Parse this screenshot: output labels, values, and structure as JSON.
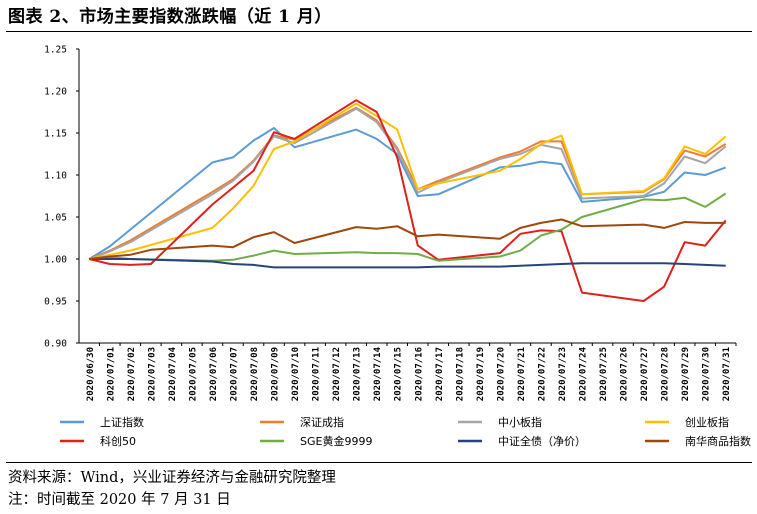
{
  "figure": {
    "title": "图表 2、市场主要指数涨跌幅（近 1 月）",
    "source": "资料来源：Wind，兴业证券经济与金融研究院整理",
    "note": "注：时间截至 2020 年 7 月 31 日"
  },
  "chart_data": {
    "type": "line",
    "title": "",
    "xlabel": "",
    "ylabel": "",
    "ylim": [
      0.9,
      1.25
    ],
    "yticks": [
      "0.90",
      "0.95",
      "1.00",
      "1.05",
      "1.10",
      "1.15",
      "1.20",
      "1.25"
    ],
    "grid": false,
    "legend_position": "bottom",
    "categories": [
      "2020/06/30",
      "2020/07/01",
      "2020/07/02",
      "2020/07/03",
      "2020/07/04",
      "2020/07/05",
      "2020/07/06",
      "2020/07/07",
      "2020/07/08",
      "2020/07/09",
      "2020/07/10",
      "2020/07/11",
      "2020/07/12",
      "2020/07/13",
      "2020/07/14",
      "2020/07/15",
      "2020/07/16",
      "2020/07/17",
      "2020/07/18",
      "2020/07/19",
      "2020/07/20",
      "2020/07/21",
      "2020/07/22",
      "2020/07/23",
      "2020/07/24",
      "2020/07/25",
      "2020/07/26",
      "2020/07/27",
      "2020/07/28",
      "2020/07/29",
      "2020/07/30",
      "2020/07/31"
    ],
    "series": [
      {
        "name": "上证指数",
        "color": "#5b9bd5",
        "values": [
          1.0,
          1.015,
          1.035,
          null,
          null,
          null,
          1.115,
          1.121,
          1.141,
          1.156,
          1.133,
          null,
          null,
          1.154,
          1.143,
          1.125,
          1.075,
          1.077,
          null,
          null,
          1.109,
          1.111,
          1.116,
          1.113,
          1.068,
          null,
          null,
          1.074,
          1.08,
          1.103,
          1.1,
          1.109
        ]
      },
      {
        "name": "深证成指",
        "color": "#ed7d31",
        "values": [
          1.0,
          1.01,
          1.022,
          null,
          null,
          null,
          1.08,
          1.095,
          1.117,
          1.147,
          1.142,
          null,
          null,
          1.18,
          1.165,
          1.132,
          1.083,
          1.093,
          null,
          null,
          1.121,
          1.128,
          1.14,
          1.14,
          1.077,
          null,
          null,
          1.08,
          1.095,
          1.129,
          1.122,
          1.137
        ]
      },
      {
        "name": "中小板指",
        "color": "#a5a5a5",
        "values": [
          1.0,
          1.009,
          1.02,
          null,
          null,
          null,
          1.077,
          1.093,
          1.116,
          1.146,
          1.138,
          null,
          null,
          1.179,
          1.163,
          1.13,
          1.079,
          1.091,
          null,
          null,
          1.119,
          1.125,
          1.136,
          1.131,
          1.072,
          null,
          null,
          1.075,
          1.09,
          1.122,
          1.114,
          1.134
        ]
      },
      {
        "name": "创业板指",
        "color": "#ffc000",
        "values": [
          1.0,
          1.005,
          1.01,
          null,
          null,
          null,
          1.037,
          1.06,
          1.087,
          1.131,
          1.14,
          null,
          null,
          1.185,
          1.17,
          1.154,
          1.083,
          1.09,
          null,
          null,
          1.105,
          1.119,
          1.137,
          1.147,
          1.077,
          null,
          null,
          1.081,
          1.096,
          1.134,
          1.125,
          1.146
        ]
      },
      {
        "name": "科创50",
        "color": "#e0201b",
        "values": [
          1.0,
          0.994,
          0.993,
          0.994,
          null,
          null,
          1.065,
          1.085,
          1.105,
          1.151,
          1.143,
          null,
          null,
          1.189,
          1.175,
          1.121,
          1.016,
          0.999,
          null,
          null,
          1.007,
          1.03,
          1.034,
          1.033,
          0.96,
          null,
          null,
          0.95,
          0.967,
          1.02,
          1.016,
          1.046
        ]
      },
      {
        "name": "SGE黄金9999",
        "color": "#70ad47",
        "values": [
          1.0,
          1.002,
          1.0,
          null,
          null,
          null,
          0.998,
          0.999,
          1.004,
          1.01,
          1.006,
          null,
          null,
          1.008,
          1.007,
          1.007,
          1.006,
          0.998,
          null,
          null,
          1.003,
          1.01,
          1.028,
          1.035,
          1.05,
          null,
          null,
          1.071,
          1.07,
          1.073,
          1.062,
          1.078
        ]
      },
      {
        "name": "中证全债（净价）",
        "color": "#264478",
        "values": [
          1.0,
          1.0,
          1.0,
          null,
          null,
          null,
          0.997,
          0.994,
          0.993,
          0.99,
          0.99,
          null,
          null,
          0.99,
          0.99,
          0.99,
          0.99,
          0.991,
          null,
          null,
          0.991,
          0.992,
          0.993,
          0.994,
          0.995,
          null,
          null,
          0.995,
          0.995,
          0.994,
          0.993,
          0.992
        ]
      },
      {
        "name": "南华商品指数",
        "color": "#9e480e",
        "values": [
          1.0,
          1.003,
          1.005,
          1.011,
          null,
          null,
          1.016,
          1.014,
          1.026,
          1.032,
          1.019,
          null,
          null,
          1.038,
          1.036,
          1.039,
          1.027,
          1.029,
          null,
          null,
          1.024,
          1.037,
          1.043,
          1.047,
          1.039,
          null,
          null,
          1.041,
          1.037,
          1.044,
          1.043,
          1.043
        ]
      }
    ]
  }
}
